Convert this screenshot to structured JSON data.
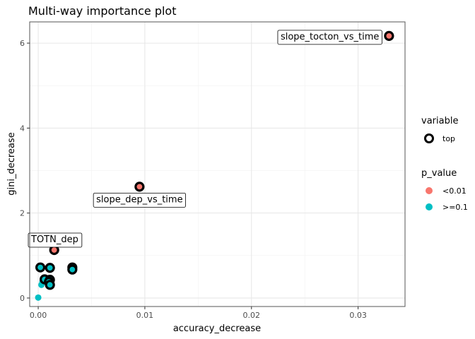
{
  "chart_data": {
    "type": "scatter",
    "title": "Multi-way importance plot",
    "xlabel": "accuracy_decrease",
    "ylabel": "gini_decrease",
    "xlim": [
      -0.0008,
      0.0344
    ],
    "ylim": [
      -0.2,
      6.5
    ],
    "xticks": [
      0.0,
      0.01,
      0.02,
      0.03
    ],
    "xtick_labels": [
      "0.00",
      "0.01",
      "0.02",
      "0.03"
    ],
    "yticks": [
      0,
      2,
      4,
      6
    ],
    "ytick_labels": [
      "0",
      "2",
      "4",
      "6"
    ],
    "grid": true,
    "legend_position": "right",
    "colors": {
      "lt001": "#F8766D",
      "ge01": "#00BFC4",
      "ring": "#000000",
      "panel_border": "#555555",
      "grid_major": "#e6e6e6",
      "grid_minor": "#f2f2f2"
    },
    "legends": [
      {
        "title": "variable",
        "items": [
          {
            "label": "top",
            "shape": "ring"
          }
        ]
      },
      {
        "title": "p_value",
        "items": [
          {
            "label": "<0.01",
            "color": "#F8766D"
          },
          {
            "label": ">=0.1",
            "color": "#00BFC4"
          }
        ]
      }
    ],
    "points": [
      {
        "x": 0.0329,
        "y": 6.17,
        "p": "<0.01",
        "top": true
      },
      {
        "x": 0.0095,
        "y": 2.62,
        "p": "<0.01",
        "top": true
      },
      {
        "x": 0.0015,
        "y": 1.13,
        "p": "<0.01",
        "top": true
      },
      {
        "x": 0.0002,
        "y": 0.72,
        "p": ">=0.1",
        "top": true
      },
      {
        "x": 0.0011,
        "y": 0.71,
        "p": ">=0.1",
        "top": true
      },
      {
        "x": 0.0032,
        "y": 0.72,
        "p": ">=0.1",
        "top": true
      },
      {
        "x": 0.0032,
        "y": 0.67,
        "p": ">=0.1",
        "top": true
      },
      {
        "x": 0.0006,
        "y": 0.44,
        "p": ">=0.1",
        "top": true
      },
      {
        "x": 0.0011,
        "y": 0.43,
        "p": ">=0.1",
        "top": true
      },
      {
        "x": 0.001,
        "y": 0.38,
        "p": ">=0.1",
        "top": true
      },
      {
        "x": 0.0011,
        "y": 0.31,
        "p": ">=0.1",
        "top": true
      },
      {
        "x": 0.0004,
        "y": 0.38,
        "p": ">=0.1",
        "top": false
      },
      {
        "x": 0.0003,
        "y": 0.31,
        "p": ">=0.1",
        "top": false
      },
      {
        "x": 0.0,
        "y": 0.01,
        "p": ">=0.1",
        "top": false
      }
    ],
    "annotations": [
      {
        "text": "slope_tocton_vs_time",
        "x": 0.0329,
        "y": 6.17,
        "anchor": "left-of"
      },
      {
        "text": "slope_dep_vs_time",
        "x": 0.0095,
        "y": 2.62,
        "anchor": "below"
      },
      {
        "text": "TOTN_dep",
        "x": 0.0015,
        "y": 1.13,
        "anchor": "above"
      }
    ]
  }
}
